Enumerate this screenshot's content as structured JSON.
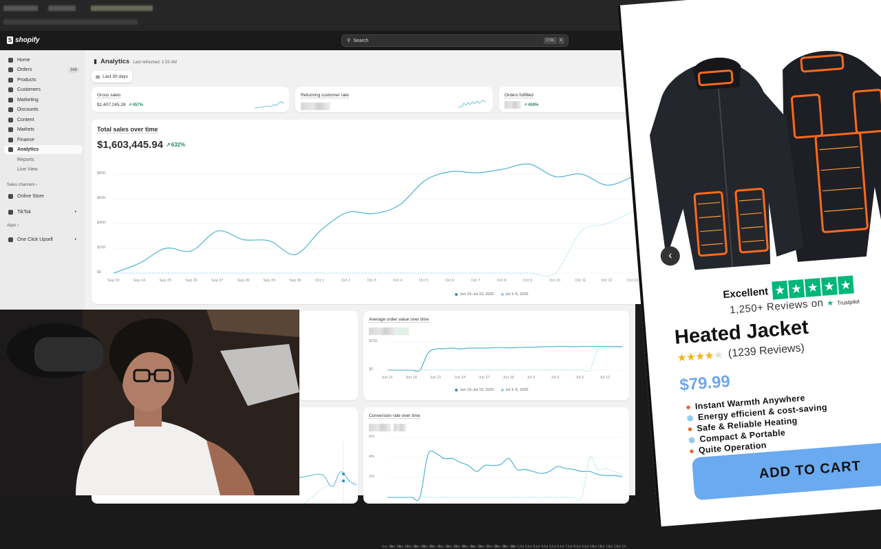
{
  "header": {
    "brand": "shopify",
    "search_placeholder": "Search",
    "shortcut": [
      "CTRL",
      "K"
    ]
  },
  "sidebar": {
    "items": [
      {
        "label": "Home",
        "icon": "home-icon"
      },
      {
        "label": "Orders",
        "icon": "orders-icon",
        "badge": "348"
      },
      {
        "label": "Products",
        "icon": "tag-icon"
      },
      {
        "label": "Customers",
        "icon": "person-icon"
      },
      {
        "label": "Marketing",
        "icon": "target-icon"
      },
      {
        "label": "Discounts",
        "icon": "discount-icon"
      },
      {
        "label": "Content",
        "icon": "content-icon"
      },
      {
        "label": "Markets",
        "icon": "globe-icon"
      },
      {
        "label": "Finance",
        "icon": "bank-icon"
      },
      {
        "label": "Analytics",
        "icon": "bar-chart-icon",
        "active": true
      }
    ],
    "sub_items": [
      "Reports",
      "Live View"
    ],
    "sales_channels_label": "Sales channels",
    "channels": [
      "Online Store",
      "TikTok"
    ],
    "apps_label": "Apps",
    "apps": [
      "One Click Upsell"
    ]
  },
  "page": {
    "title": "Analytics",
    "last_refreshed": "Last refreshed: 1:33 AM",
    "date_range": "Last 30 days"
  },
  "metrics": [
    {
      "label": "Gross sales",
      "value": "$1,407,245.26",
      "change": "457%"
    },
    {
      "label": "Returning customer rate",
      "value": "",
      "change": ""
    },
    {
      "label": "Orders fulfilled",
      "value": "",
      "change": "459%"
    }
  ],
  "total_sales": {
    "title": "Total sales over time",
    "value": "$1,603,445.94",
    "change": "632%"
  },
  "colors": {
    "primary_series": "#4fb3cf",
    "comparison_series": "#8fd3e3",
    "positive": "#29845a",
    "price": "#6fa8ea",
    "cta": "#6aaaf0",
    "trustpilot": "#00b67a"
  },
  "chart_data": [
    {
      "type": "line",
      "title": "Total sales over time",
      "categories": [
        "Sep 23",
        "Sep 24",
        "Sep 25",
        "Sep 26",
        "Sep 27",
        "Sep 28",
        "Sep 29",
        "Sep 30",
        "Oct 1",
        "Oct 2",
        "Oct 3",
        "Oct 4",
        "Oct 5",
        "Oct 6",
        "Oct 7",
        "Oct 8",
        "Oct 9",
        "Oct 10",
        "Oct 11",
        "Oct 12",
        "Oct 13"
      ],
      "yticks": [
        "$0",
        "$20K",
        "$40K",
        "$60K",
        "$80K"
      ],
      "ylim": [
        0,
        80000
      ],
      "series": [
        {
          "name": "Jun 15–Jul 15, 2025",
          "values": [
            0,
            8000,
            20000,
            18000,
            34000,
            27000,
            26000,
            15000,
            35000,
            49000,
            48000,
            55000,
            75000,
            82000,
            81000,
            84000,
            88000,
            78000,
            80000,
            71000,
            78000
          ]
        },
        {
          "name": "Jul 1–5, 2025",
          "values": [
            0,
            0,
            0,
            0,
            0,
            0,
            0,
            0,
            0,
            0,
            0,
            0,
            0,
            0,
            0,
            0,
            0,
            0,
            34000,
            40000,
            50000
          ]
        }
      ],
      "legend": "bottom"
    },
    {
      "type": "line",
      "title": "Average order value over time",
      "categories": [
        "Jun 15",
        "Jun 16",
        "Jun 17",
        "Jun 18",
        "Jun 19",
        "Jun 20",
        "Jun 21",
        "Jun 22",
        "Jun 23",
        "Jun 24",
        "Jun 25",
        "Jun 26",
        "Jun 27",
        "Jun 28",
        "Jun 29",
        "Jun 30",
        "Jul 1",
        "Jul 2",
        "Jul 3",
        "Jul 4",
        "Jul 5",
        "Jul 6",
        "Jul 7",
        "Jul 8",
        "Jul 9",
        "Jul 10",
        "Jul 11",
        "Jul 12",
        "Jul 13",
        "Jul 14"
      ],
      "xticks": [
        "Jun 15",
        "Jun 18",
        "Jun 21",
        "Jun 24",
        "Jun 27",
        "Jun 30",
        "Jul 3",
        "Jul 6",
        "Jul 9",
        "Jul 12"
      ],
      "yticks": [
        "$0",
        "$100"
      ],
      "ylim": [
        0,
        100
      ],
      "series": [
        {
          "name": "Jun 15–Jul 15, 2025",
          "values": [
            0,
            0,
            0,
            0,
            0,
            60,
            75,
            76,
            78,
            75,
            78,
            78,
            78,
            79,
            80,
            79,
            80,
            81,
            81,
            83,
            83,
            84,
            84,
            83,
            84,
            84,
            84,
            84,
            84,
            83
          ]
        },
        {
          "name": "Jul 1–5, 2025",
          "values": [
            0,
            0,
            0,
            0,
            0,
            0,
            0,
            0,
            0,
            0,
            0,
            0,
            0,
            0,
            0,
            0,
            0,
            0,
            0,
            0,
            0,
            0,
            0,
            0,
            0,
            0,
            72,
            77,
            79,
            82
          ]
        }
      ],
      "legend": "bottom"
    },
    {
      "type": "line",
      "title": "Conversion rate over time",
      "categories": [
        "Jun 15",
        "Jun 16",
        "Jun 17",
        "Jun 18",
        "Jun 19",
        "Jun 20",
        "Jun 21",
        "Jun 22",
        "Jun 23",
        "Jun 24",
        "Jun 25",
        "Jun 26",
        "Jun 27",
        "Jun 28",
        "Jun 29",
        "Jun 30",
        "Jul 1",
        "Jul 2",
        "Jul 3",
        "Jul 4",
        "Jul 5",
        "Jul 6",
        "Jul 7",
        "Jul 8",
        "Jul 9",
        "Jul 10",
        "Jul 11",
        "Jul 12",
        "Jul 13",
        "Jul 14"
      ],
      "yticks": [
        "2%",
        "4%",
        "6%"
      ],
      "ylim": [
        0,
        6
      ],
      "series": [
        {
          "name": "Jun 15–Jul 15, 2025",
          "values": [
            0,
            0,
            0,
            0,
            0,
            4.3,
            4.4,
            3.9,
            3.9,
            3.5,
            3.2,
            2.6,
            3.2,
            3.2,
            3.3,
            3.9,
            2.8,
            2.8,
            2.6,
            2.4,
            2.6,
            3.1,
            2.9,
            2.8,
            2.6,
            2.6,
            2.3,
            2.2,
            2.2,
            2.1
          ]
        },
        {
          "name": "Jul 1–5, 2025",
          "values": [
            0,
            0,
            0,
            0,
            0,
            0,
            0,
            0,
            0,
            0,
            0,
            0,
            0,
            0,
            0,
            0,
            0,
            0,
            0,
            0,
            0,
            0,
            0,
            0,
            0,
            4.0,
            2.8,
            2.9,
            2.6,
            2.3
          ]
        }
      ]
    }
  ],
  "product": {
    "rating_word": "Excellent",
    "reviews_line": "1,250+ Reviews on",
    "trustpilot": "Trustpilot",
    "name": "Heated Jacket",
    "rating": 4.5,
    "review_count": "(1239 Reviews)",
    "price": "$79.99",
    "features": [
      {
        "text": "Instant Warmth Anywhere",
        "icon": "fire-icon"
      },
      {
        "text": "Energy efficient & cost-saving",
        "icon": "snowflake-icon"
      },
      {
        "text": "Safe & Reliable Heating",
        "icon": "fire-icon"
      },
      {
        "text": "Compact & Portable",
        "icon": "snowflake-icon"
      },
      {
        "text": "Quite Operation",
        "icon": "fire-icon"
      }
    ],
    "cta": "ADD TO CART"
  }
}
